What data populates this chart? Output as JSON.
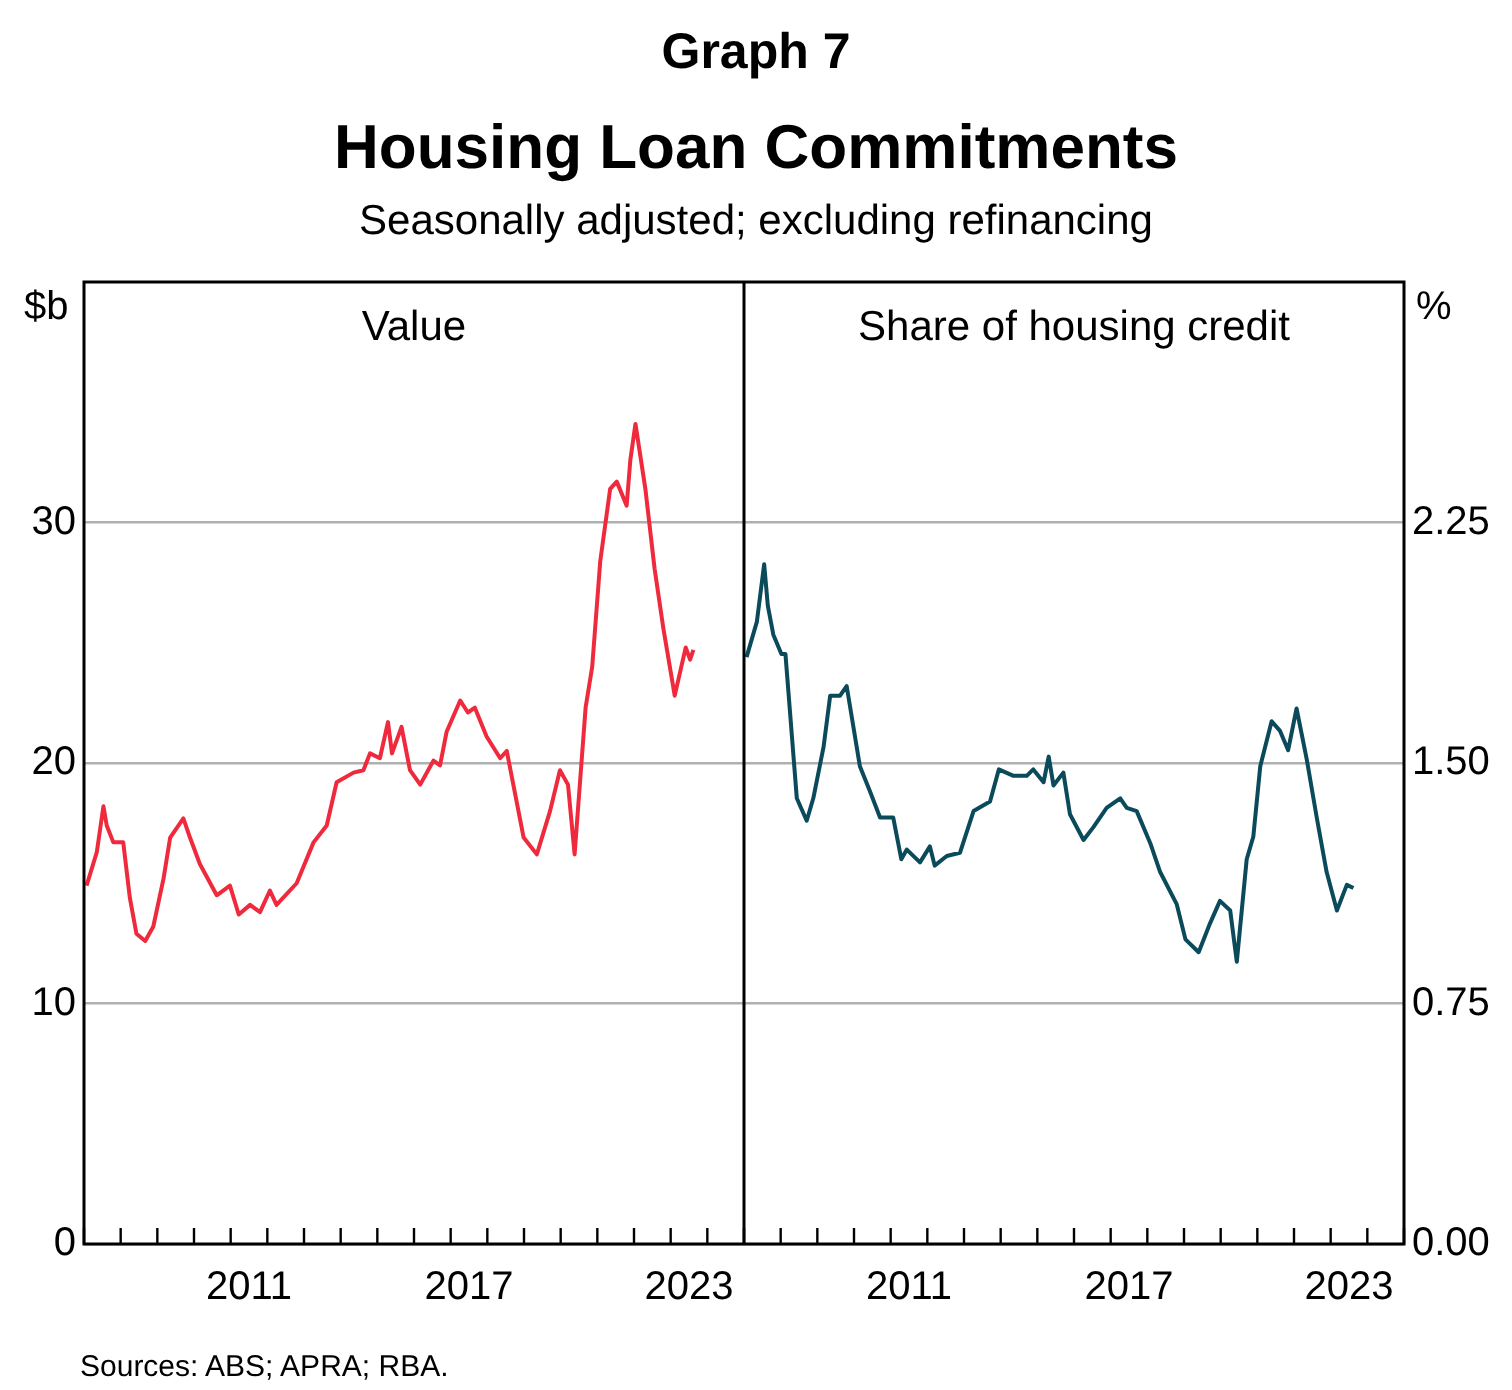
{
  "chart_data": [
    {
      "type": "line",
      "title": "Value",
      "ylabel": "$b",
      "annotations": [
        "Graph 7",
        "Housing Loan Commitments",
        "Seasonally adjusted; excluding refinancing",
        "Sources: ABS; APRA; RBA."
      ],
      "series": [
        {
          "color": "#ee2a3c",
          "x": [
            2007.07,
            2007.35,
            2007.53,
            2007.62,
            2007.8,
            2008.07,
            2008.25,
            2008.43,
            2008.67,
            2008.89,
            2009.17,
            2009.35,
            2009.71,
            2009.89,
            2010.16,
            2010.62,
            2010.98,
            2011.22,
            2011.53,
            2011.8,
            2012.07,
            2012.25,
            2012.8,
            2013.26,
            2013.62,
            2013.89,
            2014.35,
            2014.62,
            2014.8,
            2015.07,
            2015.29,
            2015.4,
            2015.66,
            2015.89,
            2016.17,
            2016.53,
            2016.71,
            2016.89,
            2017.26,
            2017.47,
            2017.66,
            2017.98,
            2018.35,
            2018.53,
            2018.99,
            2019.35,
            2019.71,
            2019.98,
            2020.2,
            2020.38,
            2020.68,
            2020.86,
            2021.08,
            2021.35,
            2021.53,
            2021.8,
            2021.9,
            2022.04,
            2022.31,
            2022.56,
            2022.8,
            2023.11,
            2023.26,
            2023.41,
            2023.53,
            2023.62
          ],
          "values": [
            14.9,
            16.3,
            18.2,
            17.4,
            16.7,
            16.7,
            14.4,
            12.9,
            12.6,
            13.2,
            15.2,
            16.9,
            17.7,
            16.9,
            15.8,
            14.5,
            14.9,
            13.7,
            14.1,
            13.8,
            14.7,
            14.1,
            15.0,
            16.7,
            17.4,
            19.2,
            19.6,
            19.7,
            20.4,
            20.2,
            21.7,
            20.4,
            21.5,
            19.7,
            19.1,
            20.1,
            19.9,
            21.3,
            22.6,
            22.1,
            22.3,
            21.1,
            20.2,
            20.5,
            16.9,
            16.2,
            18.0,
            19.7,
            19.1,
            16.2,
            22.3,
            24.0,
            28.4,
            31.4,
            31.7,
            30.7,
            32.6,
            34.1,
            31.4,
            28.1,
            25.6,
            22.8,
            23.8,
            24.8,
            24.3,
            24.7
          ]
        }
      ],
      "xlim": [
        2007,
        2025
      ],
      "xticks": [
        {
          "value": 2007,
          "label": null
        },
        {
          "value": 2008,
          "label": null
        },
        {
          "value": 2009,
          "label": null
        },
        {
          "value": 2010,
          "label": null
        },
        {
          "value": 2011,
          "label": null
        },
        {
          "value": 2011.5,
          "label": "2011"
        },
        {
          "value": 2012,
          "label": null
        },
        {
          "value": 2013,
          "label": null
        },
        {
          "value": 2014,
          "label": null
        },
        {
          "value": 2015,
          "label": null
        },
        {
          "value": 2016,
          "label": null
        },
        {
          "value": 2017,
          "label": null
        },
        {
          "value": 2017.5,
          "label": "2017"
        },
        {
          "value": 2018,
          "label": null
        },
        {
          "value": 2019,
          "label": null
        },
        {
          "value": 2020,
          "label": null
        },
        {
          "value": 2021,
          "label": null
        },
        {
          "value": 2022,
          "label": null
        },
        {
          "value": 2023,
          "label": null
        },
        {
          "value": 2023.5,
          "label": "2023"
        },
        {
          "value": 2024,
          "label": null
        },
        {
          "value": 2025,
          "label": null
        }
      ],
      "ylim": [
        0,
        40
      ],
      "yticks": [
        0,
        10,
        20,
        30
      ],
      "grid": "y",
      "legend": false,
      "marker": "none",
      "line_style": "solid"
    },
    {
      "type": "line",
      "title": "Share of housing credit",
      "y2label": "%",
      "series": [
        {
          "color": "#0b4a5a",
          "axis": "y2",
          "x": [
            2007.07,
            2007.35,
            2007.55,
            2007.65,
            2007.8,
            2008.02,
            2008.13,
            2008.44,
            2008.71,
            2008.89,
            2009.17,
            2009.35,
            2009.62,
            2009.8,
            2010.16,
            2010.44,
            2010.71,
            2011.07,
            2011.29,
            2011.44,
            2011.8,
            2012.07,
            2012.2,
            2012.53,
            2012.89,
            2013.26,
            2013.71,
            2013.95,
            2014.35,
            2014.71,
            2014.89,
            2015.17,
            2015.31,
            2015.44,
            2015.71,
            2015.89,
            2016.26,
            2016.53,
            2016.89,
            2017.26,
            2017.44,
            2017.71,
            2018.08,
            2018.35,
            2018.8,
            2019.04,
            2019.4,
            2019.71,
            2019.98,
            2020.26,
            2020.44,
            2020.71,
            2020.89,
            2021.08,
            2021.39,
            2021.62,
            2021.84,
            2022.07,
            2022.35,
            2022.62,
            2022.89,
            2023.17,
            2023.44,
            2023.62
          ],
          "values": [
            1.83,
            1.94,
            2.12,
            1.99,
            1.9,
            1.84,
            1.84,
            1.39,
            1.32,
            1.39,
            1.55,
            1.71,
            1.71,
            1.74,
            1.49,
            1.41,
            1.33,
            1.33,
            1.2,
            1.23,
            1.19,
            1.24,
            1.18,
            1.21,
            1.22,
            1.35,
            1.38,
            1.48,
            1.46,
            1.46,
            1.48,
            1.44,
            1.52,
            1.43,
            1.47,
            1.34,
            1.26,
            1.3,
            1.36,
            1.39,
            1.36,
            1.35,
            1.25,
            1.16,
            1.06,
            0.95,
            0.91,
            1.0,
            1.07,
            1.04,
            0.88,
            1.2,
            1.27,
            1.49,
            1.63,
            1.6,
            1.54,
            1.67,
            1.51,
            1.33,
            1.16,
            1.04,
            1.12,
            1.11
          ]
        }
      ],
      "xlim": [
        2007,
        2025
      ],
      "xticks": [
        {
          "value": 2007,
          "label": null
        },
        {
          "value": 2008,
          "label": null
        },
        {
          "value": 2009,
          "label": null
        },
        {
          "value": 2010,
          "label": null
        },
        {
          "value": 2011,
          "label": null
        },
        {
          "value": 2011.5,
          "label": "2011"
        },
        {
          "value": 2012,
          "label": null
        },
        {
          "value": 2013,
          "label": null
        },
        {
          "value": 2014,
          "label": null
        },
        {
          "value": 2015,
          "label": null
        },
        {
          "value": 2016,
          "label": null
        },
        {
          "value": 2017,
          "label": null
        },
        {
          "value": 2017.5,
          "label": "2017"
        },
        {
          "value": 2018,
          "label": null
        },
        {
          "value": 2019,
          "label": null
        },
        {
          "value": 2020,
          "label": null
        },
        {
          "value": 2021,
          "label": null
        },
        {
          "value": 2022,
          "label": null
        },
        {
          "value": 2023,
          "label": null
        },
        {
          "value": 2023.5,
          "label": "2023"
        },
        {
          "value": 2024,
          "label": null
        },
        {
          "value": 2025,
          "label": null
        }
      ],
      "y2lim": [
        0,
        3
      ],
      "y2ticks": [
        {
          "value": 0,
          "label": "0.00"
        },
        0.75,
        {
          "value": 1.5,
          "label": "1.50"
        },
        2.25
      ],
      "grid": "y",
      "legend": false,
      "marker": "none",
      "line_style": "solid"
    }
  ]
}
